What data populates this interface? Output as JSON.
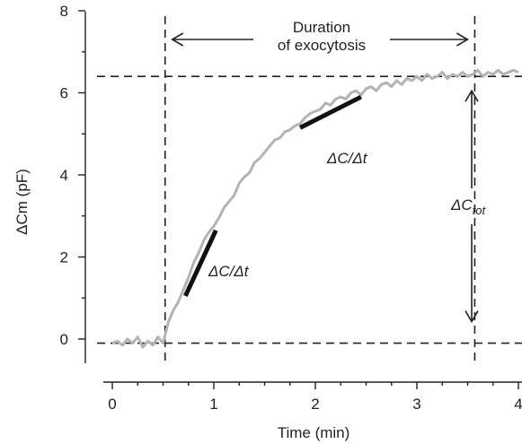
{
  "chart_data": {
    "type": "line",
    "xlabel": "Time (min)",
    "ylabel": "ΔCm (pF)",
    "xlim": [
      0,
      4
    ],
    "ylim": [
      -0.55,
      8
    ],
    "x_ticks": [
      "0",
      "1",
      "2",
      "3",
      "4"
    ],
    "y_ticks": [
      "0",
      "2",
      "4",
      "6",
      "8"
    ],
    "grid": false,
    "colors": {
      "trace": "#b3b3b3",
      "slope": "#111111",
      "guide": "#222222"
    },
    "series": [
      {
        "x": [
          0.0,
          0.05,
          0.1,
          0.15,
          0.2,
          0.25,
          0.3,
          0.35,
          0.4,
          0.45,
          0.5,
          0.52,
          0.55,
          0.6,
          0.65,
          0.7,
          0.75,
          0.8,
          0.85,
          0.9,
          0.95,
          1.0,
          1.05,
          1.1,
          1.15,
          1.2,
          1.25,
          1.3,
          1.35,
          1.4,
          1.45,
          1.5,
          1.55,
          1.6,
          1.65,
          1.7,
          1.75,
          1.8,
          1.85,
          1.9,
          1.95,
          2.0,
          2.05,
          2.1,
          2.15,
          2.2,
          2.25,
          2.3,
          2.35,
          2.4,
          2.45,
          2.5,
          2.55,
          2.6,
          2.65,
          2.7,
          2.75,
          2.8,
          2.85,
          2.9,
          2.95,
          3.0,
          3.05,
          3.1,
          3.15,
          3.2,
          3.25,
          3.3,
          3.35,
          3.4,
          3.45,
          3.5,
          3.55,
          3.6,
          3.65,
          3.7,
          3.75,
          3.8,
          3.85,
          3.9,
          3.95,
          4.0
        ],
        "y": [
          -0.1,
          -0.05,
          -0.15,
          0.0,
          -0.1,
          0.05,
          -0.2,
          -0.05,
          -0.15,
          0.05,
          -0.1,
          0.1,
          0.4,
          0.7,
          0.9,
          1.2,
          1.5,
          1.85,
          2.1,
          2.4,
          2.6,
          2.75,
          2.95,
          3.2,
          3.35,
          3.5,
          3.8,
          3.95,
          4.05,
          4.3,
          4.4,
          4.55,
          4.7,
          4.85,
          4.9,
          5.05,
          5.1,
          5.2,
          5.25,
          5.4,
          5.5,
          5.55,
          5.6,
          5.75,
          5.7,
          5.85,
          5.9,
          5.85,
          6.0,
          6.05,
          5.95,
          6.1,
          6.15,
          6.05,
          6.2,
          6.25,
          6.15,
          6.3,
          6.2,
          6.35,
          6.3,
          6.4,
          6.3,
          6.45,
          6.35,
          6.4,
          6.5,
          6.35,
          6.45,
          6.4,
          6.5,
          6.4,
          6.45,
          6.55,
          6.4,
          6.5,
          6.45,
          6.55,
          6.45,
          6.5,
          6.55,
          6.5
        ]
      }
    ],
    "slope_segments": [
      {
        "x1": 0.72,
        "y1": 1.05,
        "x2": 1.02,
        "y2": 2.65
      },
      {
        "x1": 1.85,
        "y1": 5.15,
        "x2": 2.45,
        "y2": 5.9
      }
    ],
    "guide_lines": {
      "baseline_y": -0.1,
      "plateau_y": 6.4,
      "start_x": 0.52,
      "end_x": 3.57
    },
    "annotations": {
      "duration_line1": "Duration",
      "duration_line2": "of exocytosis",
      "slope_label_1": "ΔC/Δt",
      "slope_label_2": "ΔC/Δt",
      "total_label_main": "ΔC",
      "total_label_sub": "tot"
    }
  }
}
